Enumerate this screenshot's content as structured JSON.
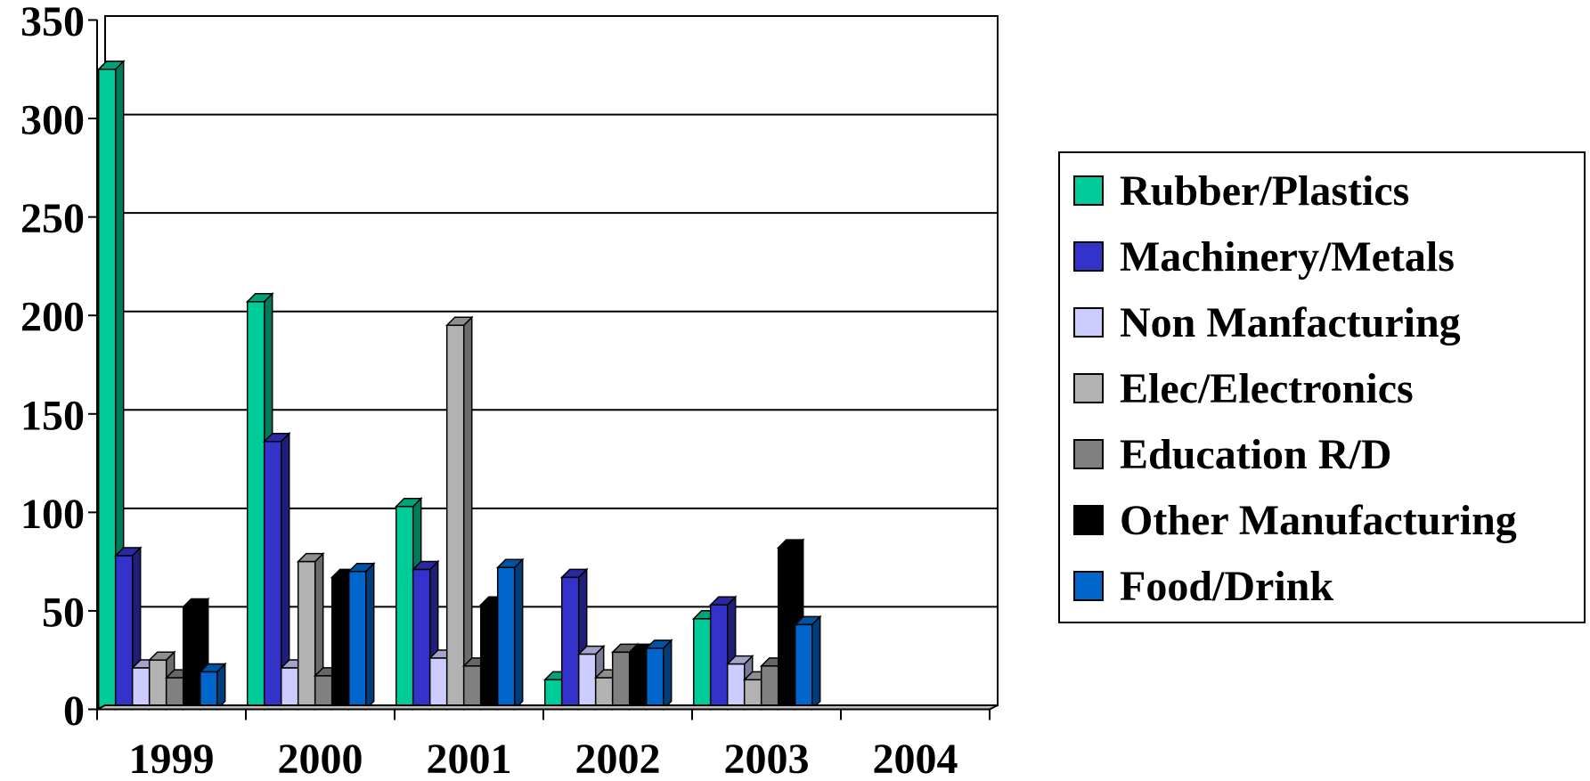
{
  "chart_data": {
    "type": "bar",
    "categories": [
      "1999",
      "2000",
      "2001",
      "2002",
      "2003",
      "2004"
    ],
    "series": [
      {
        "name": "Rubber/Plastics",
        "color": "#00cc99",
        "values": [
          325,
          207,
          103,
          15,
          46,
          0
        ]
      },
      {
        "name": "Machinery/Metals",
        "color": "#3333cc",
        "values": [
          78,
          136,
          71,
          67,
          53,
          0
        ]
      },
      {
        "name": "Non Manfacturing",
        "color": "#ccccff",
        "values": [
          21,
          21,
          26,
          28,
          23,
          0
        ]
      },
      {
        "name": "Elec/Electronics",
        "color": "#b2b2b2",
        "values": [
          25,
          75,
          195,
          16,
          15,
          0
        ]
      },
      {
        "name": "Education R/D",
        "color": "#808080",
        "values": [
          16,
          17,
          22,
          29,
          22,
          0
        ]
      },
      {
        "name": "Other Manufacturing",
        "color": "#000000",
        "values": [
          52,
          67,
          53,
          29,
          82,
          0
        ]
      },
      {
        "name": "Food/Drink",
        "color": "#0066cc",
        "values": [
          19,
          70,
          72,
          31,
          43,
          0
        ]
      }
    ],
    "yticks": [
      "0",
      "50",
      "100",
      "150",
      "200",
      "250",
      "300",
      "350"
    ],
    "ylim": [
      0,
      350
    ],
    "grid": true,
    "legend_position": "right"
  }
}
